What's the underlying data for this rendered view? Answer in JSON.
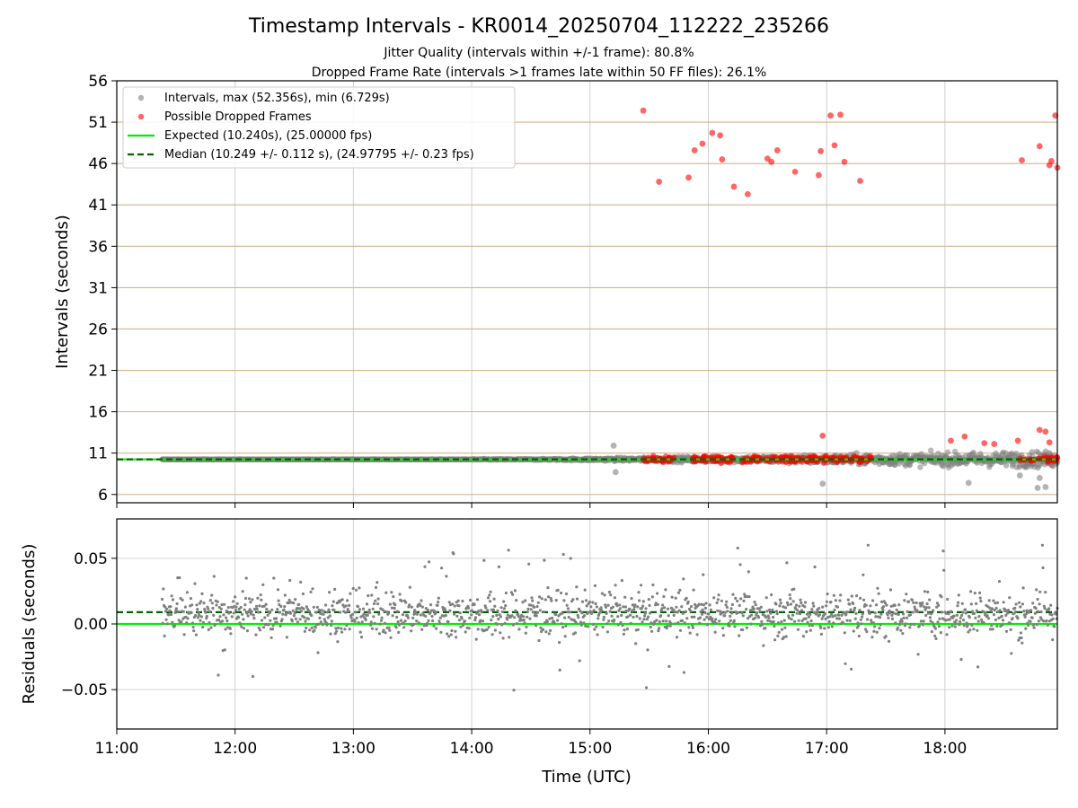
{
  "figure": {
    "title": "Timestamp Intervals - KR0014_20250704_112222_235266",
    "subtitle_line1": "Jitter Quality (intervals within +/-1 frame): 80.8%",
    "subtitle_line2": "Dropped Frame Rate (intervals >1 frames late within 50 FF files): 26.1%"
  },
  "chart_data": [
    {
      "type": "scatter",
      "panel": "intervals",
      "ylabel": "Intervals (seconds)",
      "xlim": [
        "11:00",
        "18:57"
      ],
      "ylim": [
        5,
        56
      ],
      "yticks": [
        6,
        11,
        16,
        21,
        26,
        31,
        36,
        41,
        46,
        51,
        56
      ],
      "grid": true,
      "legend_placement": "top-left",
      "legend": [
        "Intervals, max (52.356s), min (6.729s)",
        "Possible Dropped Frames",
        "Expected (10.240s), (25.00000 fps)",
        "Median (10.249 +/- 0.112 s), (24.97795 +/- 0.23 fps)"
      ],
      "series_colors": {
        "intervals": "#808080",
        "dropped": "#ff0000",
        "expected": "#00ee00",
        "median": "#006400",
        "hline": "#d2b48c"
      },
      "expected": 10.24,
      "median": 10.249,
      "interval_band": {
        "x_start": "11:23",
        "x_end": "18:57",
        "center": 10.24,
        "spread_early": 0.03,
        "spread_late": 0.45
      },
      "dropped_band": {
        "x_start": "15:27",
        "x_end": "18:57",
        "center": 10.25
      },
      "dropped_points": [
        {
          "x": "15:27",
          "y": 52.4
        },
        {
          "x": "15:35",
          "y": 43.8
        },
        {
          "x": "15:50",
          "y": 44.3
        },
        {
          "x": "15:53",
          "y": 47.6
        },
        {
          "x": "15:57",
          "y": 48.4
        },
        {
          "x": "16:02",
          "y": 49.7
        },
        {
          "x": "16:06",
          "y": 49.4
        },
        {
          "x": "16:07",
          "y": 46.5
        },
        {
          "x": "16:13",
          "y": 43.2
        },
        {
          "x": "16:20",
          "y": 42.3
        },
        {
          "x": "16:30",
          "y": 46.6
        },
        {
          "x": "16:32",
          "y": 46.2
        },
        {
          "x": "16:35",
          "y": 47.6
        },
        {
          "x": "16:44",
          "y": 45.0
        },
        {
          "x": "16:56",
          "y": 44.6
        },
        {
          "x": "16:57",
          "y": 47.5
        },
        {
          "x": "17:02",
          "y": 51.8
        },
        {
          "x": "17:04",
          "y": 48.2
        },
        {
          "x": "17:07",
          "y": 51.9
        },
        {
          "x": "17:09",
          "y": 46.2
        },
        {
          "x": "17:17",
          "y": 43.9
        },
        {
          "x": "18:39",
          "y": 46.4
        },
        {
          "x": "18:48",
          "y": 48.1
        },
        {
          "x": "18:53",
          "y": 45.8
        },
        {
          "x": "18:54",
          "y": 46.3
        },
        {
          "x": "18:56",
          "y": 51.8
        },
        {
          "x": "18:57",
          "y": 45.5
        }
      ],
      "late_points": [
        {
          "x": "16:58",
          "y": 13.1
        },
        {
          "x": "18:03",
          "y": 12.5
        },
        {
          "x": "18:10",
          "y": 13.0
        },
        {
          "x": "18:20",
          "y": 12.2
        },
        {
          "x": "18:25",
          "y": 12.1
        },
        {
          "x": "18:37",
          "y": 12.5
        },
        {
          "x": "18:48",
          "y": 13.8
        },
        {
          "x": "18:51",
          "y": 13.6
        },
        {
          "x": "18:53",
          "y": 12.3
        }
      ],
      "outlier_points": [
        {
          "x": "15:12",
          "y": 11.9
        },
        {
          "x": "15:13",
          "y": 8.7
        },
        {
          "x": "16:58",
          "y": 7.3
        },
        {
          "x": "18:12",
          "y": 7.4
        },
        {
          "x": "18:47",
          "y": 6.8
        },
        {
          "x": "18:51",
          "y": 6.9
        },
        {
          "x": "18:38",
          "y": 8.3
        },
        {
          "x": "18:48",
          "y": 8.0
        }
      ]
    },
    {
      "type": "scatter",
      "panel": "residuals",
      "xlabel": "Time (UTC)",
      "ylabel": "Residuals (seconds)",
      "xlim": [
        "11:00",
        "18:57"
      ],
      "ylim": [
        -0.08,
        0.08
      ],
      "yticks": [
        0.05,
        0.0,
        -0.05
      ],
      "ytick_labels": [
        "0.05",
        "0.00",
        "−0.05"
      ],
      "xticks": [
        "11:00",
        "12:00",
        "13:00",
        "14:00",
        "15:00",
        "16:00",
        "17:00",
        "18:00"
      ],
      "grid": true,
      "residual_color": "#808080",
      "zero_line": 0.0,
      "median_line": 0.009,
      "x_start": "11:23",
      "x_end": "18:57"
    }
  ]
}
